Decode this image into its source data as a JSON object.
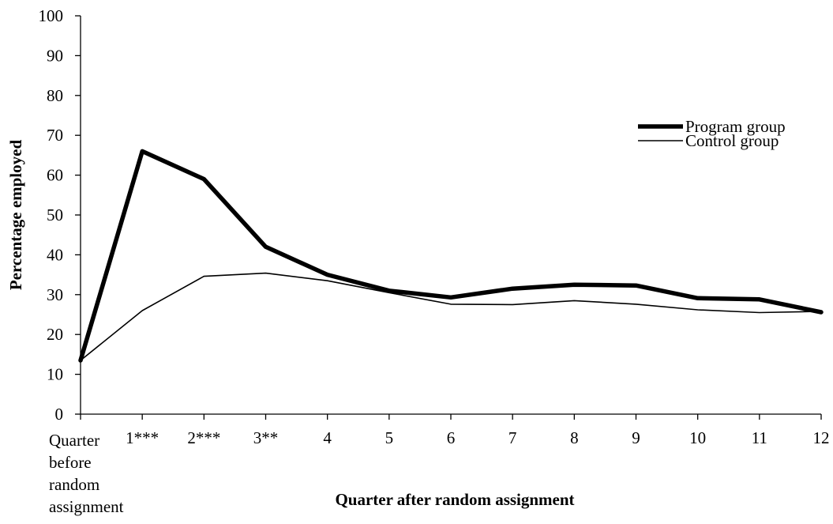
{
  "chart_data": {
    "type": "line",
    "title": "",
    "xlabel": "Quarter after random assignment",
    "ylabel": "Percentage employed",
    "categories": [
      "Quarter before random assignment",
      "1***",
      "2***",
      "3**",
      "4",
      "5",
      "6",
      "7",
      "8",
      "9",
      "10",
      "11",
      "12"
    ],
    "ylim": [
      0,
      100
    ],
    "yticks": [
      0,
      10,
      20,
      30,
      40,
      50,
      60,
      70,
      80,
      90,
      100
    ],
    "grid": false,
    "legend_position": "right",
    "series": [
      {
        "name": "Program group",
        "style": "thick",
        "color": "#000000",
        "values": [
          13.5,
          66,
          59,
          42,
          35,
          31,
          29.3,
          31.5,
          32.5,
          32.3,
          29.1,
          28.8,
          25.6
        ]
      },
      {
        "name": "Control group",
        "style": "thin",
        "color": "#000000",
        "values": [
          13.5,
          26,
          34.6,
          35.4,
          33.5,
          30.5,
          27.6,
          27.5,
          28.5,
          27.6,
          26.2,
          25.5,
          25.8
        ]
      }
    ]
  }
}
